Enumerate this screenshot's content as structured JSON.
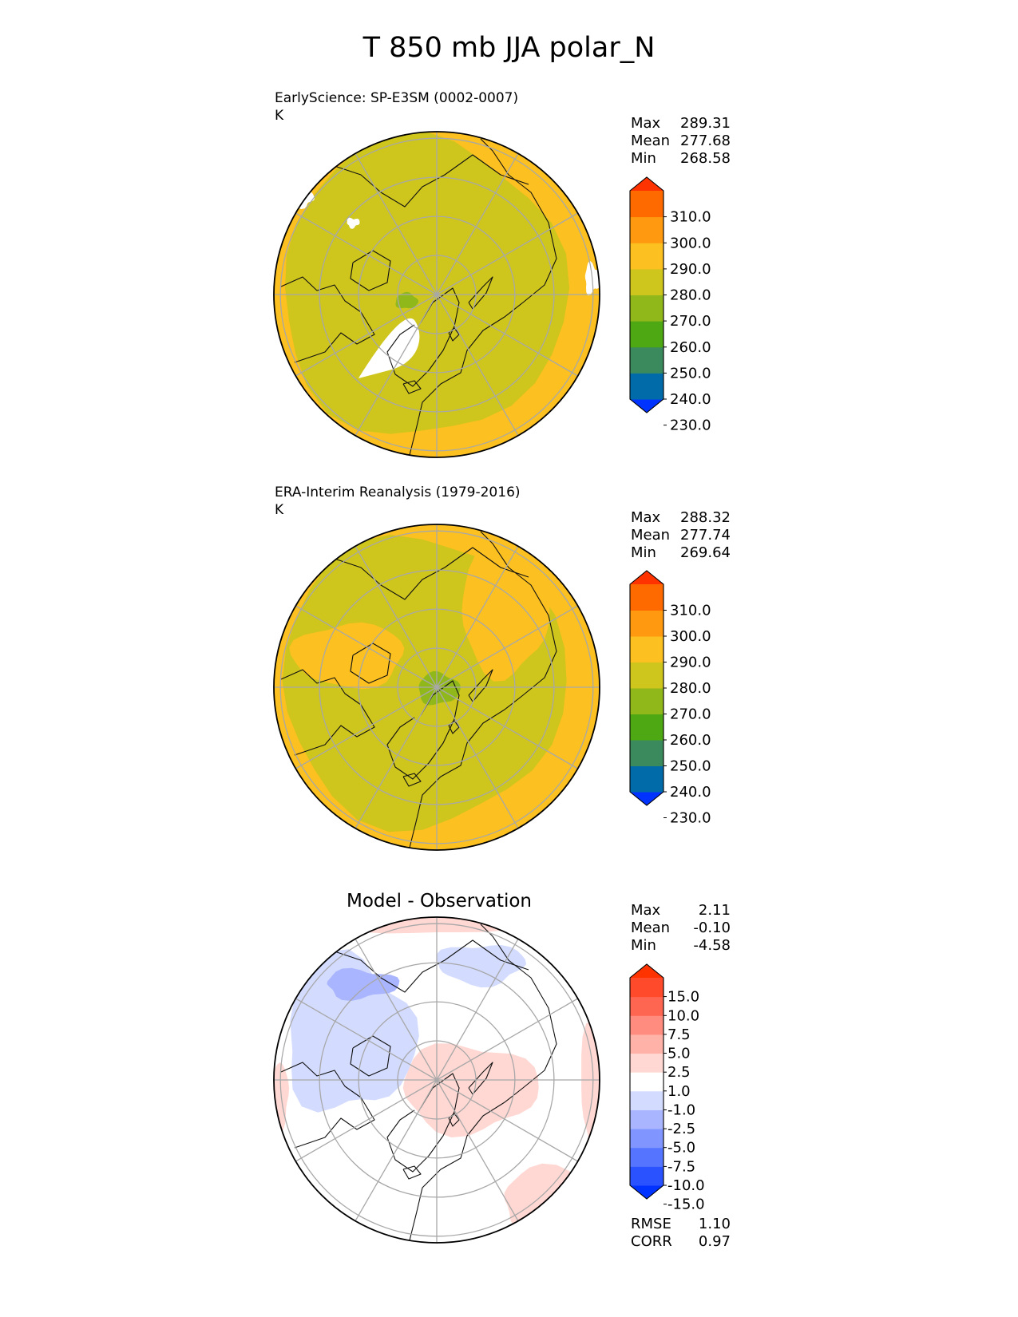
{
  "title": "T 850 mb JJA polar_N",
  "panels": [
    {
      "label": "EarlySciencePanel",
      "subtitle": "EarlyScience: SP-E3SM (0002-0007)",
      "units": "K",
      "stats": [
        {
          "name": "Max",
          "value": "289.31"
        },
        {
          "name": "Mean",
          "value": "277.68"
        },
        {
          "name": "Min",
          "value": "268.58"
        }
      ],
      "colorbar": {
        "ticks": [
          "310.0",
          "300.0",
          "290.0",
          "280.0",
          "270.0",
          "260.0",
          "250.0",
          "240.0",
          "230.0"
        ],
        "colors": [
          "#0033ff",
          "#006ba8",
          "#3a8a5e",
          "#4ea813",
          "#90b81b",
          "#cec51d",
          "#fcc020",
          "#ff9a10",
          "#ff6a00",
          "#ff3300"
        ]
      }
    },
    {
      "label": "ERAPanel",
      "subtitle": "ERA-Interim Reanalysis (1979-2016)",
      "units": "K",
      "stats": [
        {
          "name": "Max",
          "value": "288.32"
        },
        {
          "name": "Mean",
          "value": "277.74"
        },
        {
          "name": "Min",
          "value": "269.64"
        }
      ],
      "colorbar": {
        "ticks": [
          "310.0",
          "300.0",
          "290.0",
          "280.0",
          "270.0",
          "260.0",
          "250.0",
          "240.0",
          "230.0"
        ],
        "colors": [
          "#0033ff",
          "#006ba8",
          "#3a8a5e",
          "#4ea813",
          "#90b81b",
          "#cec51d",
          "#fcc020",
          "#ff9a10",
          "#ff6a00",
          "#ff3300"
        ]
      }
    },
    {
      "label": "DiffPanel",
      "subtitle": "Model - Observation",
      "units": "",
      "stats": [
        {
          "name": "Max",
          "value": "2.11"
        },
        {
          "name": "Mean",
          "value": "-0.10"
        },
        {
          "name": "Min",
          "value": "-4.58"
        }
      ],
      "metrics": [
        {
          "name": "RMSE",
          "value": "1.10"
        },
        {
          "name": "CORR",
          "value": "0.97"
        }
      ],
      "colorbar": {
        "ticks": [
          "15.0",
          "10.0",
          "7.5",
          "5.0",
          "2.5",
          "1.0",
          "-1.0",
          "-2.5",
          "-5.0",
          "-7.5",
          "-10.0",
          "-15.0"
        ],
        "colors": [
          "#0033ff",
          "#2b52ff",
          "#5574ff",
          "#8095ff",
          "#aab5ff",
          "#d3dbff",
          "#ffffff",
          "#ffd8d3",
          "#ffb2a8",
          "#ff8c7f",
          "#ff6652",
          "#ff4a2b",
          "#ff3300"
        ]
      }
    }
  ],
  "chart_data": {
    "type": "polar stereographic contour maps",
    "variable": "T 850 mb",
    "season": "JJA",
    "region": "polar_N"
  }
}
